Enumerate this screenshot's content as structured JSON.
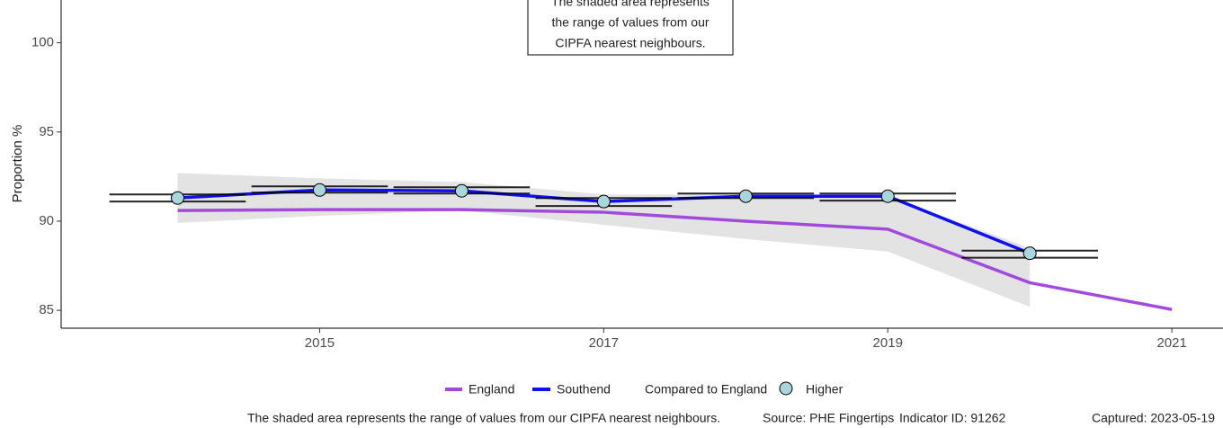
{
  "chart_data": {
    "type": "line",
    "y_label": "Proportion %",
    "x": [
      2014,
      2015,
      2016,
      2017,
      2018,
      2019,
      2020,
      2021
    ],
    "xlim": [
      2013.18,
      2021.36
    ],
    "xticks": [
      2015,
      2017,
      2019,
      2021
    ],
    "ylim": [
      84,
      102.4
    ],
    "yticks": [
      85,
      90,
      95,
      100
    ],
    "series": [
      {
        "name": "England",
        "color": "#a24bdb",
        "values": [
          90.6,
          90.65,
          90.65,
          90.5,
          90.0,
          89.55,
          86.55,
          85.05
        ]
      },
      {
        "name": "Southend",
        "color": "#1010ee",
        "values": [
          91.3,
          91.75,
          91.7,
          91.1,
          91.4,
          91.4,
          88.2,
          null
        ],
        "ci_lower": [
          91.1,
          91.6,
          91.55,
          90.85,
          91.3,
          91.15,
          87.95,
          null
        ],
        "ci_upper": [
          91.5,
          91.95,
          91.9,
          91.3,
          91.55,
          91.55,
          88.35,
          null
        ],
        "marker_color": "#a9d5dc"
      }
    ],
    "band": {
      "color": "#e3e3e3",
      "lower": [
        89.9,
        90.3,
        90.6,
        89.8,
        89.0,
        88.3,
        85.2
      ],
      "upper": [
        92.7,
        92.4,
        92.2,
        91.5,
        91.5,
        91.4,
        88.5
      ]
    },
    "annotation": [
      "The shaded area represents",
      "the range of values from our",
      "CIPFA nearest neighbours."
    ],
    "legend_title": "Compared to England",
    "legend_marker_label": "Higher",
    "footer": [
      "The shaded area represents the range of values from our CIPFA nearest neighbours.",
      "Source: PHE Fingertips",
      "Indicator ID: 91262",
      "Captured: 2023-05-19"
    ]
  }
}
